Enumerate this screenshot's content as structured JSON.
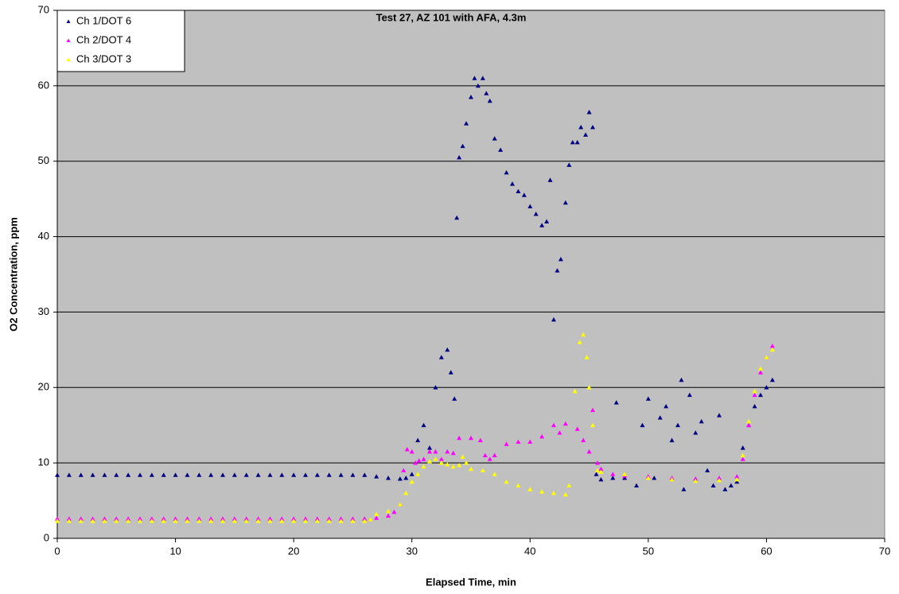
{
  "chart_data": {
    "type": "scatter",
    "title": "Test 27, AZ 101 with AFA, 4.3m",
    "x_label": "Elapsed Time, min",
    "y_label": "O2 Concentration, ppm",
    "xlim": [
      0,
      70
    ],
    "ylim": [
      0,
      70
    ],
    "xticks": [
      0,
      10,
      20,
      30,
      40,
      50,
      60,
      70
    ],
    "yticks": [
      0,
      10,
      20,
      30,
      40,
      50,
      60,
      70
    ],
    "grid": true,
    "legend": "upper left",
    "series": [
      {
        "name": "Ch 1/DOT 6",
        "color": "#000080",
        "x": [
          0,
          1,
          2,
          3,
          4,
          5,
          6,
          7,
          8,
          9,
          10,
          11,
          12,
          13,
          14,
          15,
          16,
          17,
          18,
          19,
          20,
          21,
          22,
          23,
          24,
          25,
          26,
          27,
          28,
          29,
          29.5,
          30,
          30.5,
          31,
          31.5,
          32,
          32.5,
          33,
          33.3,
          33.6,
          33.8,
          34,
          34.3,
          34.6,
          35,
          35.3,
          35.6,
          36,
          36.3,
          36.6,
          37,
          37.5,
          38,
          38.5,
          39,
          39.5,
          40,
          40.5,
          41,
          41.4,
          41.7,
          42,
          42.3,
          42.6,
          43,
          43.3,
          43.6,
          44,
          44.3,
          44.7,
          45,
          45.3,
          45.6,
          46,
          47,
          47.3,
          48,
          49,
          49.5,
          50,
          50.5,
          51,
          51.5,
          52,
          52.5,
          52.8,
          53,
          53.5,
          54,
          54.5,
          55,
          55.5,
          56,
          56.5,
          57,
          57.5,
          58,
          58.5,
          59,
          59.5,
          60,
          60.5
        ],
        "values": [
          8.4,
          8.4,
          8.4,
          8.4,
          8.4,
          8.4,
          8.4,
          8.4,
          8.4,
          8.4,
          8.4,
          8.4,
          8.4,
          8.4,
          8.4,
          8.4,
          8.4,
          8.4,
          8.4,
          8.4,
          8.4,
          8.4,
          8.4,
          8.4,
          8.4,
          8.4,
          8.4,
          8.2,
          8.0,
          7.9,
          8.0,
          8.5,
          13,
          15,
          12,
          20,
          24,
          25,
          22,
          18.5,
          42.5,
          50.5,
          52,
          55,
          58.5,
          61,
          60,
          61,
          59,
          58,
          53,
          51.5,
          48.5,
          47,
          46,
          45.5,
          44,
          43,
          41.5,
          42,
          47.5,
          29,
          35.5,
          37,
          44.5,
          49.5,
          52.5,
          52.5,
          54.5,
          53.5,
          56.5,
          54.5,
          8.5,
          7.8,
          8,
          18,
          8,
          7,
          15,
          18.5,
          8,
          16,
          17.5,
          13,
          15,
          21,
          6.5,
          19,
          14,
          15.5,
          9,
          7,
          16.3,
          6.5,
          7,
          7.5,
          12,
          15,
          17.5,
          19,
          20,
          21
        ]
      },
      {
        "name": "Ch 2/DOT 4",
        "color": "#ff00ff",
        "x": [
          0,
          1,
          2,
          3,
          4,
          5,
          6,
          7,
          8,
          9,
          10,
          11,
          12,
          13,
          14,
          15,
          16,
          17,
          18,
          19,
          20,
          21,
          22,
          23,
          24,
          25,
          26,
          26.5,
          27,
          28,
          28.5,
          29,
          29.3,
          29.6,
          30,
          30.3,
          30.6,
          31,
          31.5,
          32,
          32.5,
          33,
          33.5,
          34,
          35,
          35.8,
          36.2,
          36.6,
          37,
          38,
          39,
          40,
          41,
          42,
          42.5,
          43,
          44,
          44.5,
          45,
          45.3,
          45.7,
          46,
          47,
          48,
          50,
          52,
          54,
          56,
          57.5,
          58,
          58.5,
          59,
          59.5,
          60,
          60.5
        ],
        "values": [
          2.6,
          2.6,
          2.6,
          2.6,
          2.6,
          2.6,
          2.6,
          2.6,
          2.6,
          2.6,
          2.6,
          2.6,
          2.6,
          2.6,
          2.6,
          2.6,
          2.6,
          2.6,
          2.6,
          2.6,
          2.6,
          2.6,
          2.6,
          2.6,
          2.6,
          2.6,
          2.6,
          2.5,
          2.7,
          3.0,
          3.5,
          4.5,
          9,
          11.8,
          11.5,
          10,
          10.3,
          10.5,
          11.5,
          11.5,
          10.5,
          11.5,
          11.3,
          13.3,
          13.3,
          13,
          11,
          10.5,
          11,
          12.5,
          12.8,
          12.8,
          13.5,
          15,
          14,
          15.2,
          14.5,
          13,
          11.5,
          17,
          10,
          9.2,
          8.5,
          8.3,
          8.2,
          8,
          7.9,
          8,
          8.2,
          10.5,
          15,
          19,
          22,
          24,
          25.5
        ]
      },
      {
        "name": "Ch 3/DOT 3",
        "color": "#ffff00",
        "x": [
          0,
          1,
          2,
          3,
          4,
          5,
          6,
          7,
          8,
          9,
          10,
          11,
          12,
          13,
          14,
          15,
          16,
          17,
          18,
          19,
          20,
          21,
          22,
          23,
          24,
          25,
          26,
          26.5,
          27,
          28,
          29,
          29.5,
          30,
          30.5,
          31,
          31.5,
          32,
          32.5,
          33,
          33.5,
          34,
          34.3,
          34.6,
          35,
          36,
          37,
          38,
          39,
          40,
          41,
          42,
          43,
          43.3,
          43.8,
          44.2,
          44.5,
          44.8,
          45,
          45.3,
          45.7,
          46,
          48,
          50,
          52,
          54,
          56,
          57.5,
          58,
          58.5,
          59,
          59.5,
          60,
          60.5
        ],
        "values": [
          2.3,
          2.3,
          2.3,
          2.3,
          2.3,
          2.3,
          2.3,
          2.3,
          2.3,
          2.3,
          2.3,
          2.3,
          2.3,
          2.3,
          2.3,
          2.3,
          2.3,
          2.3,
          2.3,
          2.3,
          2.3,
          2.3,
          2.3,
          2.3,
          2.3,
          2.3,
          2.3,
          2.5,
          3.2,
          3.6,
          4.5,
          6,
          7.5,
          8.5,
          9.5,
          10.2,
          10.5,
          10,
          9.8,
          9.5,
          9.7,
          10.8,
          10,
          9.2,
          9,
          8.5,
          7.5,
          7,
          6.5,
          6.2,
          6,
          5.8,
          7,
          19.5,
          26,
          27,
          24,
          20,
          15,
          9,
          8.8,
          8.5,
          8,
          7.8,
          7.6,
          7.7,
          7.8,
          11,
          15.5,
          19.5,
          22.5,
          24,
          25
        ]
      }
    ]
  }
}
